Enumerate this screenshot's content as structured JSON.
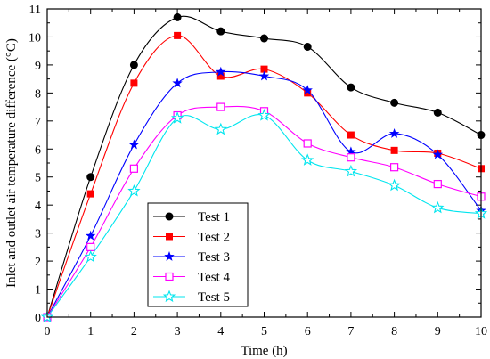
{
  "chart_data": {
    "type": "line",
    "xlabel": "Time (h)",
    "ylabel": "Inlet and outlet air temperature difference (°C)",
    "xlim": [
      0,
      10
    ],
    "ylim": [
      0,
      11
    ],
    "x_ticks": [
      0,
      1,
      2,
      3,
      4,
      5,
      6,
      7,
      8,
      9,
      10
    ],
    "y_ticks": [
      0,
      1,
      2,
      3,
      4,
      5,
      6,
      7,
      8,
      9,
      10,
      11
    ],
    "grid": false,
    "smooth": true,
    "legend": {
      "position": "bottom-left"
    },
    "x": [
      0,
      1,
      2,
      3,
      4,
      5,
      6,
      7,
      8,
      9,
      10
    ],
    "series": [
      {
        "name": "Test 1",
        "color": "#000000",
        "marker": "circle",
        "values": [
          0,
          5.0,
          9.0,
          10.7,
          10.2,
          9.95,
          9.65,
          8.2,
          7.65,
          7.3,
          6.5
        ]
      },
      {
        "name": "Test 2",
        "color": "#ff0000",
        "marker": "square",
        "values": [
          0,
          4.4,
          8.35,
          10.05,
          8.6,
          8.85,
          8.0,
          6.5,
          5.95,
          5.85,
          5.3
        ]
      },
      {
        "name": "Test 3",
        "color": "#0000ff",
        "marker": "star",
        "values": [
          0,
          2.9,
          6.15,
          8.35,
          8.75,
          8.6,
          8.1,
          5.9,
          6.55,
          5.8,
          3.8
        ]
      },
      {
        "name": "Test 4",
        "color": "#ff00ff",
        "marker": "open-square",
        "values": [
          0,
          2.5,
          5.3,
          7.2,
          7.5,
          7.35,
          6.2,
          5.7,
          5.35,
          4.75,
          4.3
        ]
      },
      {
        "name": "Test 5",
        "color": "#00e5ee",
        "marker": "open-star",
        "values": [
          0,
          2.15,
          4.5,
          7.1,
          6.7,
          7.2,
          5.6,
          5.2,
          4.7,
          3.9,
          3.7
        ]
      }
    ]
  }
}
